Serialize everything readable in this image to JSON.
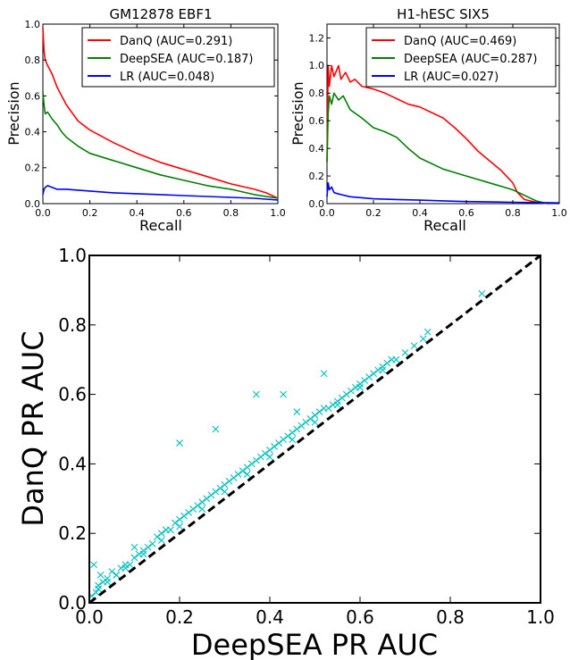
{
  "chart_data": [
    {
      "type": "line",
      "title": "GM12878 EBF1",
      "xlabel": "Recall",
      "ylabel": "Precision",
      "xlim": [
        0,
        1
      ],
      "ylim": [
        0,
        1
      ],
      "xticks": [
        "0.0",
        "0.2",
        "0.4",
        "0.6",
        "0.8",
        "1.0"
      ],
      "yticks": [
        "0.0",
        "0.2",
        "0.4",
        "0.6",
        "0.8",
        "1.0"
      ],
      "legend_position": "top-right",
      "series": [
        {
          "name": "DanQ (AUC=0.291)",
          "color": "#ff0000",
          "x": [
            0.0,
            0.005,
            0.01,
            0.02,
            0.04,
            0.06,
            0.08,
            0.1,
            0.15,
            0.2,
            0.3,
            0.4,
            0.5,
            0.6,
            0.7,
            0.8,
            0.9,
            0.95,
            1.0
          ],
          "y": [
            0.98,
            0.85,
            0.8,
            0.77,
            0.72,
            0.65,
            0.6,
            0.55,
            0.46,
            0.41,
            0.34,
            0.28,
            0.23,
            0.19,
            0.15,
            0.11,
            0.08,
            0.06,
            0.03
          ]
        },
        {
          "name": "DeepSEA (AUC=0.187)",
          "color": "#008000",
          "x": [
            0.0,
            0.005,
            0.01,
            0.02,
            0.04,
            0.06,
            0.08,
            0.1,
            0.15,
            0.2,
            0.3,
            0.4,
            0.5,
            0.6,
            0.7,
            0.8,
            0.9,
            1.0
          ],
          "y": [
            0.62,
            0.55,
            0.5,
            0.51,
            0.47,
            0.44,
            0.4,
            0.37,
            0.32,
            0.28,
            0.24,
            0.2,
            0.16,
            0.13,
            0.1,
            0.08,
            0.05,
            0.03
          ]
        },
        {
          "name": "LR (AUC=0.048)",
          "color": "#0000ff",
          "x": [
            0.0,
            0.005,
            0.01,
            0.02,
            0.04,
            0.06,
            0.1,
            0.2,
            0.3,
            0.4,
            0.5,
            0.6,
            0.7,
            0.8,
            0.9,
            1.0
          ],
          "y": [
            0.05,
            0.08,
            0.09,
            0.1,
            0.09,
            0.08,
            0.08,
            0.07,
            0.06,
            0.055,
            0.05,
            0.045,
            0.04,
            0.035,
            0.03,
            0.02
          ]
        }
      ]
    },
    {
      "type": "line",
      "title": "H1-hESC SIX5",
      "xlabel": "Recall",
      "ylabel": "Precision",
      "xlim": [
        0,
        1
      ],
      "ylim": [
        0,
        1.3
      ],
      "xticks": [
        "0.0",
        "0.2",
        "0.4",
        "0.6",
        "0.8",
        "1.0"
      ],
      "yticks": [
        "0.0",
        "0.2",
        "0.4",
        "0.6",
        "0.8",
        "1.0",
        "1.2"
      ],
      "legend_position": "top-right",
      "series": [
        {
          "name": "DanQ (AUC=0.469)",
          "color": "#ff0000",
          "x": [
            0.0,
            0.005,
            0.01,
            0.02,
            0.03,
            0.05,
            0.06,
            0.08,
            0.1,
            0.12,
            0.15,
            0.2,
            0.25,
            0.3,
            0.35,
            0.4,
            0.45,
            0.5,
            0.55,
            0.6,
            0.65,
            0.7,
            0.75,
            0.8,
            0.82,
            0.85,
            0.9,
            0.95
          ],
          "y": [
            0.3,
            1.0,
            0.85,
            1.0,
            0.92,
            1.0,
            0.9,
            0.95,
            0.88,
            0.9,
            0.85,
            0.83,
            0.8,
            0.76,
            0.72,
            0.7,
            0.66,
            0.62,
            0.55,
            0.47,
            0.38,
            0.31,
            0.24,
            0.15,
            0.08,
            0.03,
            0.01,
            0.0
          ]
        },
        {
          "name": "DeepSEA (AUC=0.287)",
          "color": "#008000",
          "x": [
            0.0,
            0.005,
            0.01,
            0.02,
            0.03,
            0.05,
            0.07,
            0.1,
            0.15,
            0.2,
            0.25,
            0.3,
            0.35,
            0.4,
            0.5,
            0.6,
            0.7,
            0.8,
            0.85,
            0.9,
            0.95
          ],
          "y": [
            0.3,
            0.65,
            0.78,
            0.72,
            0.8,
            0.75,
            0.78,
            0.68,
            0.62,
            0.55,
            0.52,
            0.48,
            0.4,
            0.33,
            0.25,
            0.2,
            0.15,
            0.1,
            0.06,
            0.02,
            0.0
          ]
        },
        {
          "name": "LR (AUC=0.027)",
          "color": "#0000ff",
          "x": [
            0.0,
            0.005,
            0.01,
            0.02,
            0.03,
            0.05,
            0.1,
            0.2,
            0.3,
            0.4,
            0.5,
            0.6,
            0.7,
            0.8,
            0.9,
            1.0
          ],
          "y": [
            0.05,
            0.15,
            0.1,
            0.12,
            0.08,
            0.07,
            0.05,
            0.035,
            0.03,
            0.025,
            0.02,
            0.015,
            0.012,
            0.01,
            0.008,
            0.005
          ]
        }
      ]
    },
    {
      "type": "scatter",
      "title": "",
      "xlabel": "DeepSEA PR AUC",
      "ylabel": "DanQ PR AUC",
      "xlim": [
        0,
        1
      ],
      "ylim": [
        0,
        1
      ],
      "xticks": [
        "0.0",
        "0.2",
        "0.4",
        "0.6",
        "0.8",
        "1.0"
      ],
      "yticks": [
        "0.0",
        "0.2",
        "0.4",
        "0.6",
        "0.8",
        "1.0"
      ],
      "marker": "x",
      "marker_color": "#00bfbf",
      "reference_line": {
        "x": [
          0,
          1
        ],
        "y": [
          0,
          1
        ],
        "style": "dashed",
        "color": "#000000"
      },
      "series": [
        {
          "x": [
            0.01,
            0.015,
            0.02,
            0.025,
            0.03,
            0.04,
            0.05,
            0.06,
            0.07,
            0.08,
            0.09,
            0.1,
            0.11,
            0.12,
            0.13,
            0.14,
            0.15,
            0.16,
            0.17,
            0.18,
            0.19,
            0.2,
            0.21,
            0.22,
            0.23,
            0.24,
            0.25,
            0.26,
            0.27,
            0.28,
            0.29,
            0.3,
            0.31,
            0.32,
            0.33,
            0.34,
            0.35,
            0.36,
            0.37,
            0.38,
            0.39,
            0.4,
            0.41,
            0.42,
            0.43,
            0.44,
            0.45,
            0.46,
            0.47,
            0.48,
            0.49,
            0.5,
            0.51,
            0.52,
            0.53,
            0.54,
            0.55,
            0.56,
            0.57,
            0.58,
            0.59,
            0.6,
            0.61,
            0.62,
            0.63,
            0.64,
            0.65,
            0.66,
            0.67,
            0.68,
            0.7,
            0.72,
            0.74,
            0.75,
            0.87,
            0.005,
            0.02,
            0.04,
            0.06,
            0.08,
            0.12,
            0.16,
            0.2,
            0.25,
            0.3,
            0.35,
            0.4,
            0.45,
            0.5,
            0.55,
            0.6,
            0.65,
            0.28,
            0.37,
            0.46,
            0.2,
            0.1,
            0.52,
            0.43
          ],
          "y": [
            0.11,
            0.03,
            0.05,
            0.08,
            0.06,
            0.07,
            0.09,
            0.08,
            0.1,
            0.11,
            0.11,
            0.13,
            0.14,
            0.15,
            0.16,
            0.17,
            0.19,
            0.2,
            0.21,
            0.21,
            0.23,
            0.24,
            0.25,
            0.26,
            0.27,
            0.28,
            0.29,
            0.3,
            0.31,
            0.32,
            0.33,
            0.34,
            0.35,
            0.36,
            0.37,
            0.38,
            0.39,
            0.4,
            0.41,
            0.42,
            0.43,
            0.44,
            0.45,
            0.46,
            0.47,
            0.48,
            0.49,
            0.5,
            0.51,
            0.52,
            0.53,
            0.54,
            0.55,
            0.56,
            0.56,
            0.57,
            0.58,
            0.59,
            0.6,
            0.61,
            0.62,
            0.63,
            0.64,
            0.65,
            0.66,
            0.67,
            0.68,
            0.69,
            0.7,
            0.7,
            0.72,
            0.74,
            0.76,
            0.78,
            0.89,
            0.02,
            0.04,
            0.06,
            0.08,
            0.1,
            0.14,
            0.18,
            0.22,
            0.27,
            0.32,
            0.37,
            0.42,
            0.47,
            0.52,
            0.57,
            0.62,
            0.67,
            0.5,
            0.6,
            0.55,
            0.46,
            0.16,
            0.66,
            0.6
          ]
        }
      ]
    }
  ]
}
